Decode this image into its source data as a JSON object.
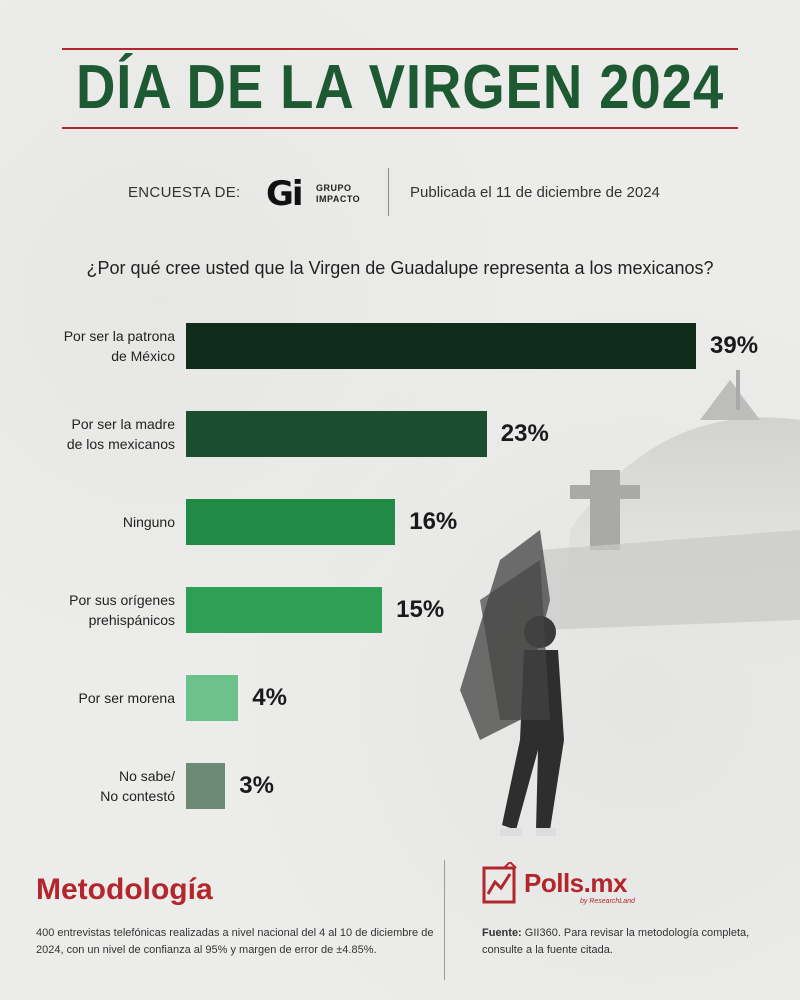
{
  "header": {
    "title": "DÍA DE LA VIRGEN 2024",
    "survey_label": "ENCUESTA DE:",
    "logo_mark": "Gi",
    "logo_line1": "GRUPO",
    "logo_line2": "IMPACTO",
    "published": "Publicada el 11 de diciembre de 2024"
  },
  "question": "¿Por qué cree usted que la Virgen de Guadalupe representa a los mexicanos?",
  "chart_data": {
    "type": "bar",
    "orientation": "horizontal",
    "title": "¿Por qué cree usted que la Virgen de Guadalupe representa a los mexicanos?",
    "categories": [
      [
        "Por ser la patrona",
        "de México"
      ],
      [
        "Por ser la madre",
        "de los mexicanos"
      ],
      [
        "Ninguno"
      ],
      [
        "Por sus orígenes",
        "prehispánicos"
      ],
      [
        "Por ser morena"
      ],
      [
        "No sabe/",
        "No contestó"
      ]
    ],
    "values": [
      39,
      23,
      16,
      15,
      4,
      3
    ],
    "value_labels": [
      "39%",
      "23%",
      "16%",
      "15%",
      "4%",
      "3%"
    ],
    "colors": [
      "#0f2b1a",
      "#1b4d2e",
      "#218a45",
      "#2ea055",
      "#6dc28c",
      "#6d8a76"
    ],
    "unit": "%",
    "xlim": [
      0,
      39
    ]
  },
  "footer": {
    "methodology_title": "Metodología",
    "methodology_text": "400 entrevistas telefónicas realizadas a nivel nacional del 4 al 10 de diciembre de 2024, con un nivel de confianza al 95% y margen de error de ±4.85%.",
    "polls_name": "Polls.mx",
    "polls_sub": "by ResearchLand",
    "source_label": "Fuente:",
    "source_text": "GII360. Para revisar la metodología completa, consulte a la fuente citada."
  },
  "colors": {
    "title_green": "#1d5a32",
    "accent_red": "#b3262c",
    "background": "#ececea"
  }
}
